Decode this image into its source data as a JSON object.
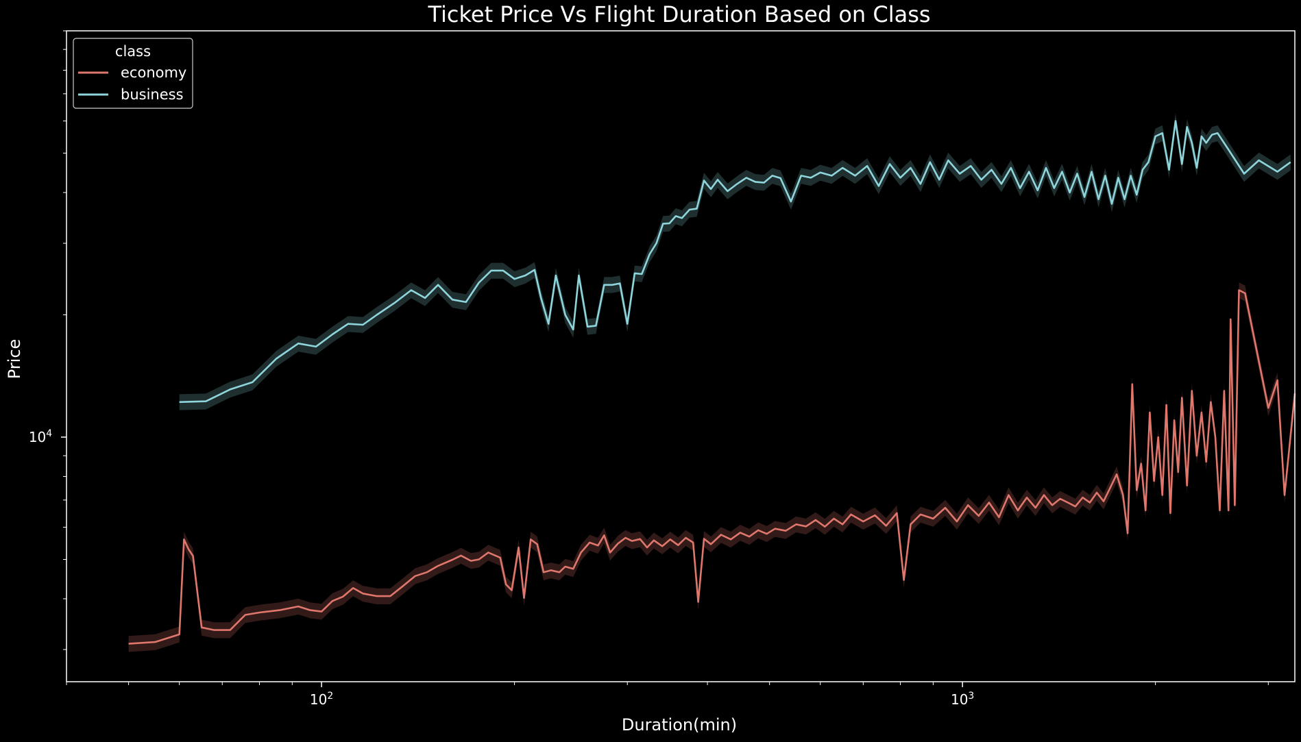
{
  "chart_data": {
    "type": "line",
    "title": "Ticket Price Vs Flight Duration Based on Class",
    "xlabel": "Duration(min)",
    "ylabel": "Price",
    "xscale": "log",
    "yscale": "log",
    "xlim": [
      40,
      3300
    ],
    "ylim": [
      2500,
      100000
    ],
    "x_ticks": [
      {
        "value": 100,
        "base": "10",
        "exp": "2"
      },
      {
        "value": 1000,
        "base": "10",
        "exp": "3"
      }
    ],
    "y_ticks": [
      {
        "value": 10000,
        "base": "10",
        "exp": "4"
      }
    ],
    "grid": false,
    "legend": {
      "title": "class",
      "position": "top-left",
      "entries": [
        {
          "name": "economy",
          "color": "#e0776d"
        },
        {
          "name": "business",
          "color": "#8fd5dc"
        }
      ]
    },
    "colors": {
      "background": "#000000",
      "axes": "#ffffff",
      "economy": "#e0776d",
      "business": "#8fd5dc"
    },
    "series": [
      {
        "name": "economy",
        "color": "#e0776d",
        "points": [
          [
            50,
            3100
          ],
          [
            55,
            3130
          ],
          [
            60,
            3270
          ],
          [
            61,
            5600
          ],
          [
            62,
            5300
          ],
          [
            63,
            5100
          ],
          [
            65,
            3400
          ],
          [
            68,
            3350
          ],
          [
            72,
            3350
          ],
          [
            76,
            3650
          ],
          [
            80,
            3700
          ],
          [
            86,
            3750
          ],
          [
            92,
            3830
          ],
          [
            96,
            3750
          ],
          [
            100,
            3720
          ],
          [
            104,
            3950
          ],
          [
            108,
            4050
          ],
          [
            112,
            4250
          ],
          [
            116,
            4120
          ],
          [
            122,
            4060
          ],
          [
            128,
            4060
          ],
          [
            134,
            4300
          ],
          [
            140,
            4550
          ],
          [
            146,
            4650
          ],
          [
            152,
            4820
          ],
          [
            160,
            4990
          ],
          [
            165,
            5110
          ],
          [
            171,
            4960
          ],
          [
            176,
            5000
          ],
          [
            182,
            5200
          ],
          [
            190,
            5050
          ],
          [
            194,
            4340
          ],
          [
            198,
            4200
          ],
          [
            203,
            5350
          ],
          [
            207,
            4020
          ],
          [
            212,
            5600
          ],
          [
            217,
            5450
          ],
          [
            222,
            4650
          ],
          [
            228,
            4700
          ],
          [
            235,
            4650
          ],
          [
            240,
            4800
          ],
          [
            247,
            4740
          ],
          [
            254,
            5200
          ],
          [
            262,
            5500
          ],
          [
            270,
            5410
          ],
          [
            276,
            5730
          ],
          [
            282,
            5200
          ],
          [
            290,
            5470
          ],
          [
            298,
            5650
          ],
          [
            305,
            5550
          ],
          [
            314,
            5610
          ],
          [
            322,
            5350
          ],
          [
            330,
            5570
          ],
          [
            340,
            5390
          ],
          [
            350,
            5600
          ],
          [
            360,
            5420
          ],
          [
            370,
            5650
          ],
          [
            380,
            5500
          ],
          [
            387,
            3930
          ],
          [
            395,
            5620
          ],
          [
            405,
            5450
          ],
          [
            420,
            5750
          ],
          [
            435,
            5600
          ],
          [
            450,
            5820
          ],
          [
            465,
            5690
          ],
          [
            480,
            5900
          ],
          [
            495,
            5780
          ],
          [
            510,
            5950
          ],
          [
            530,
            5880
          ],
          [
            550,
            6100
          ],
          [
            570,
            6030
          ],
          [
            590,
            6250
          ],
          [
            610,
            6020
          ],
          [
            630,
            6300
          ],
          [
            650,
            6100
          ],
          [
            670,
            6450
          ],
          [
            700,
            6200
          ],
          [
            730,
            6420
          ],
          [
            760,
            6050
          ],
          [
            790,
            6500
          ],
          [
            810,
            4450
          ],
          [
            830,
            6100
          ],
          [
            860,
            6450
          ],
          [
            900,
            6300
          ],
          [
            940,
            6700
          ],
          [
            980,
            6200
          ],
          [
            1020,
            6800
          ],
          [
            1060,
            6400
          ],
          [
            1100,
            6900
          ],
          [
            1140,
            6350
          ],
          [
            1180,
            7200
          ],
          [
            1220,
            6600
          ],
          [
            1260,
            7100
          ],
          [
            1300,
            6700
          ],
          [
            1340,
            7200
          ],
          [
            1380,
            6800
          ],
          [
            1420,
            7050
          ],
          [
            1460,
            6900
          ],
          [
            1500,
            6750
          ],
          [
            1540,
            7100
          ],
          [
            1580,
            6900
          ],
          [
            1620,
            7300
          ],
          [
            1660,
            6950
          ],
          [
            1700,
            7500
          ],
          [
            1740,
            8100
          ],
          [
            1780,
            7200
          ],
          [
            1810,
            5800
          ],
          [
            1840,
            13500
          ],
          [
            1870,
            7400
          ],
          [
            1900,
            8600
          ],
          [
            1930,
            6600
          ],
          [
            1960,
            11500
          ],
          [
            1990,
            7800
          ],
          [
            2020,
            10000
          ],
          [
            2050,
            7200
          ],
          [
            2080,
            12000
          ],
          [
            2110,
            6500
          ],
          [
            2140,
            11000
          ],
          [
            2170,
            8200
          ],
          [
            2200,
            12500
          ],
          [
            2240,
            7600
          ],
          [
            2280,
            13000
          ],
          [
            2320,
            9000
          ],
          [
            2360,
            11500
          ],
          [
            2400,
            8700
          ],
          [
            2440,
            12200
          ],
          [
            2480,
            10000
          ],
          [
            2520,
            6600
          ],
          [
            2560,
            13000
          ],
          [
            2600,
            6600
          ],
          [
            2620,
            19500
          ],
          [
            2660,
            6800
          ],
          [
            2700,
            23000
          ],
          [
            2760,
            22600
          ],
          [
            3000,
            11800
          ],
          [
            3100,
            13800
          ],
          [
            3180,
            7200
          ],
          [
            3300,
            12800
          ]
        ]
      },
      {
        "name": "business",
        "color": "#8fd5dc",
        "points": [
          [
            60,
            12200
          ],
          [
            66,
            12250
          ],
          [
            72,
            13100
          ],
          [
            78,
            13650
          ],
          [
            85,
            15600
          ],
          [
            92,
            17000
          ],
          [
            98,
            16700
          ],
          [
            104,
            17900
          ],
          [
            110,
            19000
          ],
          [
            116,
            18900
          ],
          [
            122,
            20000
          ],
          [
            130,
            21400
          ],
          [
            138,
            23000
          ],
          [
            145,
            22000
          ],
          [
            152,
            23700
          ],
          [
            160,
            21800
          ],
          [
            168,
            21500
          ],
          [
            176,
            24000
          ],
          [
            184,
            25700
          ],
          [
            192,
            25700
          ],
          [
            200,
            24500
          ],
          [
            208,
            25000
          ],
          [
            215,
            25800
          ],
          [
            220,
            22000
          ],
          [
            226,
            19000
          ],
          [
            232,
            25000
          ],
          [
            240,
            20000
          ],
          [
            247,
            18400
          ],
          [
            252,
            25000
          ],
          [
            260,
            18700
          ],
          [
            268,
            18800
          ],
          [
            276,
            23700
          ],
          [
            284,
            23700
          ],
          [
            292,
            23900
          ],
          [
            300,
            19000
          ],
          [
            308,
            25300
          ],
          [
            316,
            25200
          ],
          [
            325,
            28200
          ],
          [
            333,
            30000
          ],
          [
            341,
            33500
          ],
          [
            349,
            33600
          ],
          [
            357,
            35000
          ],
          [
            365,
            34600
          ],
          [
            375,
            36300
          ],
          [
            385,
            36500
          ],
          [
            395,
            42800
          ],
          [
            405,
            40800
          ],
          [
            415,
            43000
          ],
          [
            430,
            40300
          ],
          [
            445,
            42000
          ],
          [
            460,
            43500
          ],
          [
            475,
            42500
          ],
          [
            490,
            42300
          ],
          [
            505,
            44000
          ],
          [
            520,
            43400
          ],
          [
            540,
            38000
          ],
          [
            560,
            44000
          ],
          [
            580,
            43500
          ],
          [
            600,
            44800
          ],
          [
            625,
            44000
          ],
          [
            650,
            46000
          ],
          [
            680,
            44000
          ],
          [
            710,
            46500
          ],
          [
            740,
            41500
          ],
          [
            770,
            47000
          ],
          [
            800,
            43500
          ],
          [
            830,
            46000
          ],
          [
            860,
            42000
          ],
          [
            890,
            47500
          ],
          [
            920,
            43000
          ],
          [
            950,
            48000
          ],
          [
            990,
            44500
          ],
          [
            1030,
            46500
          ],
          [
            1070,
            43000
          ],
          [
            1110,
            45500
          ],
          [
            1150,
            42000
          ],
          [
            1190,
            46000
          ],
          [
            1230,
            41000
          ],
          [
            1270,
            45000
          ],
          [
            1310,
            40500
          ],
          [
            1350,
            46000
          ],
          [
            1390,
            41000
          ],
          [
            1430,
            45000
          ],
          [
            1470,
            40000
          ],
          [
            1510,
            44500
          ],
          [
            1550,
            39000
          ],
          [
            1590,
            45000
          ],
          [
            1630,
            38500
          ],
          [
            1670,
            44000
          ],
          [
            1710,
            37500
          ],
          [
            1750,
            43500
          ],
          [
            1790,
            38500
          ],
          [
            1830,
            44000
          ],
          [
            1870,
            39500
          ],
          [
            1910,
            45500
          ],
          [
            1950,
            47500
          ],
          [
            2000,
            55000
          ],
          [
            2050,
            56000
          ],
          [
            2100,
            45500
          ],
          [
            2150,
            60000
          ],
          [
            2200,
            47000
          ],
          [
            2240,
            58000
          ],
          [
            2280,
            53000
          ],
          [
            2320,
            46000
          ],
          [
            2360,
            55000
          ],
          [
            2400,
            53000
          ],
          [
            2450,
            55500
          ],
          [
            2500,
            56000
          ],
          [
            2600,
            51000
          ],
          [
            2750,
            44500
          ],
          [
            2900,
            48000
          ],
          [
            3100,
            45000
          ],
          [
            3250,
            47500
          ]
        ]
      }
    ]
  }
}
